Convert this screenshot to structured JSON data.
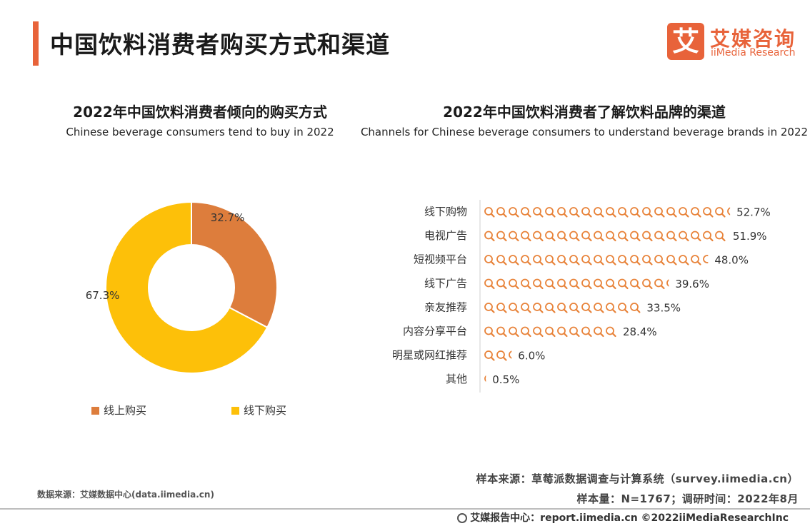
{
  "header": {
    "title": "中国饮料消费者购买方式和渠道",
    "accent_color": "#e8633a"
  },
  "logo": {
    "mark": "艾",
    "name_cn": "艾媒咨询",
    "name_en": "iiMedia Research"
  },
  "chart_data": [
    {
      "type": "pie",
      "title": "2022年中国饮料消费者倾向的购买方式",
      "subtitle": "Chinese beverage consumers tend to buy in 2022",
      "labels": [
        "线上购买",
        "线下购买"
      ],
      "values": [
        32.7,
        67.3
      ],
      "value_labels": [
        "32.7%",
        "67.3%"
      ],
      "colors": [
        "#dd7d3c",
        "#fdc009"
      ],
      "legend_position": "bottom"
    },
    {
      "type": "bar",
      "orientation": "horizontal",
      "title": "2022年中国饮料消费者了解饮料品牌的渠道",
      "subtitle": "Channels for Chinese beverage consumers to understand beverage brands in 2022",
      "categories": [
        "线下购物",
        "电视广告",
        "短视频平台",
        "线下广告",
        "亲友推荐",
        "内容分享平台",
        "明星或网红推荐",
        "其他"
      ],
      "values": [
        52.7,
        51.9,
        48.0,
        39.6,
        33.5,
        28.4,
        6.0,
        0.5
      ],
      "value_labels": [
        "52.7%",
        "51.9%",
        "48.0%",
        "39.6%",
        "33.5%",
        "28.4%",
        "6.0%",
        "0.5%"
      ],
      "icon": "magnifier-icon",
      "color": "#e8833a"
    }
  ],
  "footer": {
    "data_source": "数据来源：艾媒数据中心(data.iimedia.cn)",
    "sample_source": "样本来源：草莓派数据调查与计算系统（survey.iimedia.cn）",
    "sample_size": "样本量：N=1767；调研时间：2022年8月",
    "report_center": "艾媒报告中心：report.iimedia.cn  ©2022iiMediaResearchInc"
  }
}
